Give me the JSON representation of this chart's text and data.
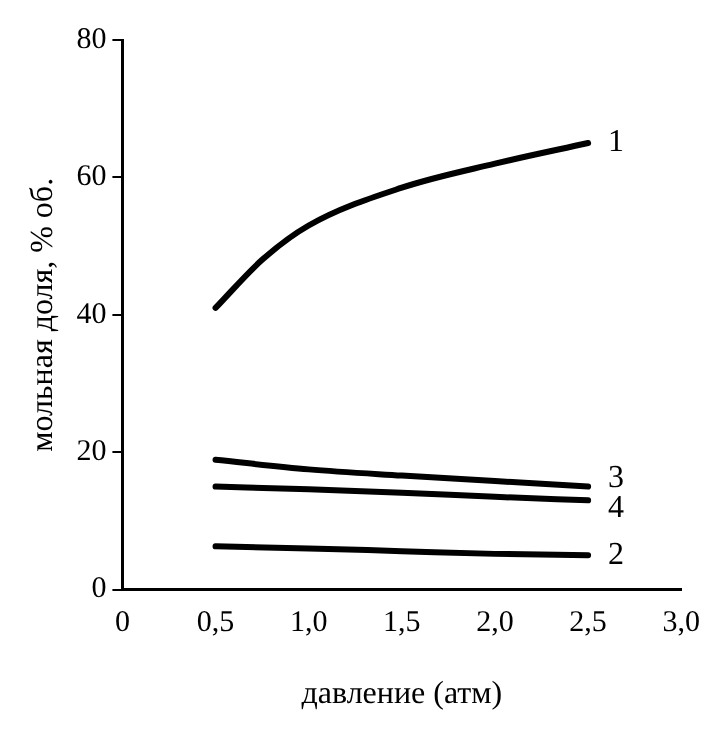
{
  "chart_data": {
    "type": "line",
    "xlabel": "давление (атм)",
    "ylabel": "мольная доля, % об.",
    "xlim": [
      0,
      3
    ],
    "ylim": [
      0,
      80
    ],
    "xticks": [
      0,
      {
        "value": 0.5,
        "label": "0,5"
      },
      {
        "value": 1,
        "label": "1,0"
      },
      {
        "value": 1.5,
        "label": "1,5"
      },
      {
        "value": 2,
        "label": "2,0"
      },
      {
        "value": 2.5,
        "label": "2,5"
      },
      {
        "value": 3,
        "label": "3,0"
      }
    ],
    "yticks": [
      0,
      20,
      40,
      60,
      80
    ],
    "grid": false,
    "legend": false,
    "marker": "none",
    "line_style": "solid",
    "series": [
      {
        "name": "1",
        "color": "#000000",
        "x": [
          0.5,
          0.75,
          1,
          1.5,
          2,
          2.5
        ],
        "values": [
          41,
          48,
          53,
          58.5,
          62,
          65
        ]
      },
      {
        "name": "2",
        "color": "#000000",
        "x": [
          0.5,
          1,
          1.5,
          2,
          2.5
        ],
        "values": [
          6.3,
          6,
          5.6,
          5.2,
          5
        ]
      },
      {
        "name": "3",
        "color": "#000000",
        "x": [
          0.5,
          1,
          1.5,
          2,
          2.5
        ],
        "values": [
          18.9,
          17.5,
          16.6,
          15.8,
          15
        ]
      },
      {
        "name": "4",
        "color": "#000000",
        "x": [
          0.5,
          1,
          1.5,
          2,
          2.5
        ],
        "values": [
          15,
          14.6,
          14.1,
          13.5,
          13
        ]
      }
    ]
  }
}
